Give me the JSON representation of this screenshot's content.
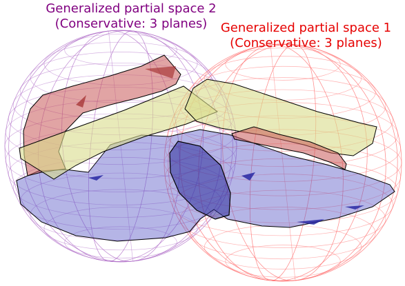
{
  "labels": {
    "space2": {
      "title": "Generalized partial space 2",
      "subtitle": "(Conservative: 3 planes)"
    },
    "space1": {
      "title": "Generalized partial space 1",
      "subtitle": "(Conservative: 3 planes)"
    }
  },
  "colors": {
    "space2_label": "#800080",
    "space1_label": "#e60000",
    "sphere2_wire": "#b070c8",
    "sphere1_wire": "#ff7070",
    "plane_red": "#c85a5a",
    "plane_yellow": "#d8dc8a",
    "plane_blue": "#5c5cc8",
    "outline": "#000000"
  }
}
